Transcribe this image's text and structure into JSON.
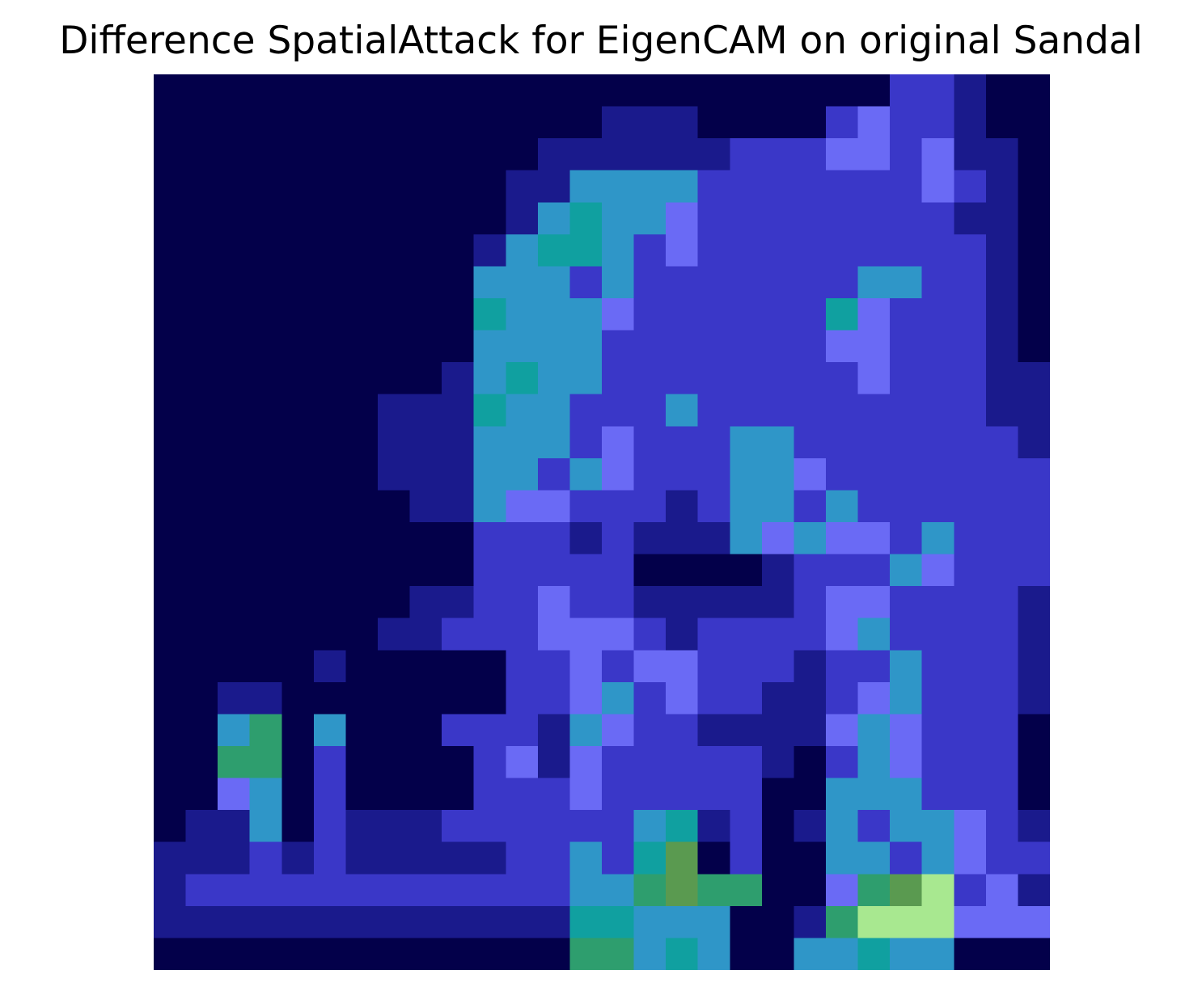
{
  "title": "Difference SpatialAttack for EigenCAM on original Sandal",
  "colormap": [
    "#03004a",
    "#1a1a8c",
    "#3a37c8",
    "#6a6af5",
    "#2f96c8",
    "#10a0a0",
    "#2e9e6e",
    "#5a9a50",
    "#a8e890"
  ],
  "background_color": "#ffffff"
}
